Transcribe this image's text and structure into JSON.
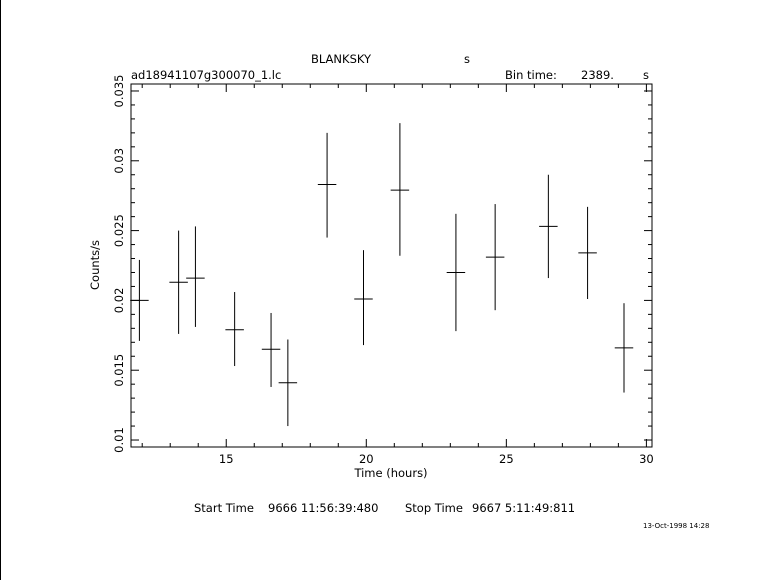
{
  "header": {
    "object_name": "BLANKSKY",
    "object_suffix": "s",
    "file_name": "ad18941107g300070_1.lc",
    "bin_time_label": "Bin time:",
    "bin_time_value": "2389.",
    "bin_time_unit": "s"
  },
  "footer": {
    "start_label": "Start Time",
    "start_value": "9666  11:56:39:480",
    "stop_label": "Stop Time",
    "stop_value": "9667   5:11:49:811",
    "timestamp": "13-Oct-1998 14:28"
  },
  "chart_data": {
    "type": "scatter",
    "title": "",
    "xlabel": "Time (hours)",
    "ylabel": "Counts/s",
    "xlim": [
      11.6,
      30.2
    ],
    "ylim": [
      0.0095,
      0.0355
    ],
    "xticks": [
      15,
      20,
      25,
      30
    ],
    "xtick_labels": [
      "15",
      "20",
      "25",
      "30"
    ],
    "yticks": [
      0.01,
      0.015,
      0.02,
      0.025,
      0.03,
      0.035
    ],
    "ytick_labels": [
      "0.01",
      "0.015",
      "0.02",
      "0.025",
      "0.03",
      "0.035"
    ],
    "grid": false,
    "points": [
      {
        "x": 11.9,
        "y": 0.02,
        "xerr": 0.33,
        "ylo": 0.0171,
        "yhi": 0.0229
      },
      {
        "x": 13.3,
        "y": 0.0213,
        "xerr": 0.33,
        "ylo": 0.0176,
        "yhi": 0.025
      },
      {
        "x": 13.9,
        "y": 0.0216,
        "xerr": 0.33,
        "ylo": 0.0181,
        "yhi": 0.0253
      },
      {
        "x": 15.3,
        "y": 0.0179,
        "xerr": 0.33,
        "ylo": 0.0153,
        "yhi": 0.0206
      },
      {
        "x": 16.6,
        "y": 0.0165,
        "xerr": 0.33,
        "ylo": 0.0138,
        "yhi": 0.0191
      },
      {
        "x": 17.2,
        "y": 0.0141,
        "xerr": 0.33,
        "ylo": 0.011,
        "yhi": 0.0172
      },
      {
        "x": 18.6,
        "y": 0.0283,
        "xerr": 0.33,
        "ylo": 0.0245,
        "yhi": 0.032
      },
      {
        "x": 19.9,
        "y": 0.0201,
        "xerr": 0.33,
        "ylo": 0.0168,
        "yhi": 0.0236
      },
      {
        "x": 21.2,
        "y": 0.0279,
        "xerr": 0.33,
        "ylo": 0.0232,
        "yhi": 0.0327
      },
      {
        "x": 23.2,
        "y": 0.022,
        "xerr": 0.33,
        "ylo": 0.0178,
        "yhi": 0.0262
      },
      {
        "x": 24.6,
        "y": 0.0231,
        "xerr": 0.33,
        "ylo": 0.0193,
        "yhi": 0.0269
      },
      {
        "x": 26.5,
        "y": 0.0253,
        "xerr": 0.33,
        "ylo": 0.0216,
        "yhi": 0.029
      },
      {
        "x": 27.9,
        "y": 0.0234,
        "xerr": 0.33,
        "ylo": 0.0201,
        "yhi": 0.0267
      },
      {
        "x": 29.2,
        "y": 0.0166,
        "xerr": 0.33,
        "ylo": 0.0134,
        "yhi": 0.0198
      }
    ]
  }
}
